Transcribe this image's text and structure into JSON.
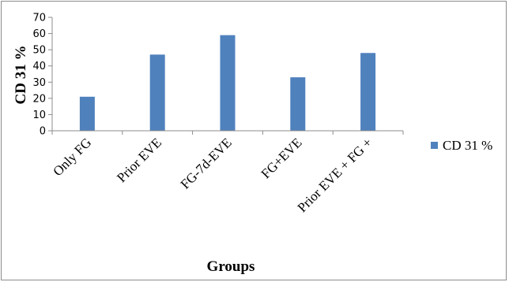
{
  "chart_data": {
    "type": "bar",
    "categories": [
      "Only FG",
      "Prior EVE",
      "FG-7d-EVE",
      "FG+EVE",
      "Prior EVE + FG +"
    ],
    "series": [
      {
        "name": "CD 31 %",
        "values": [
          21,
          47,
          59,
          33,
          48
        ],
        "color": "#4f81bd"
      }
    ],
    "xlabel": "Groups",
    "ylabel": "CD 31 %",
    "ylim": [
      0,
      70
    ],
    "yticks": [
      0,
      10,
      20,
      30,
      40,
      50,
      60,
      70
    ],
    "grid": false,
    "legend": "right"
  }
}
